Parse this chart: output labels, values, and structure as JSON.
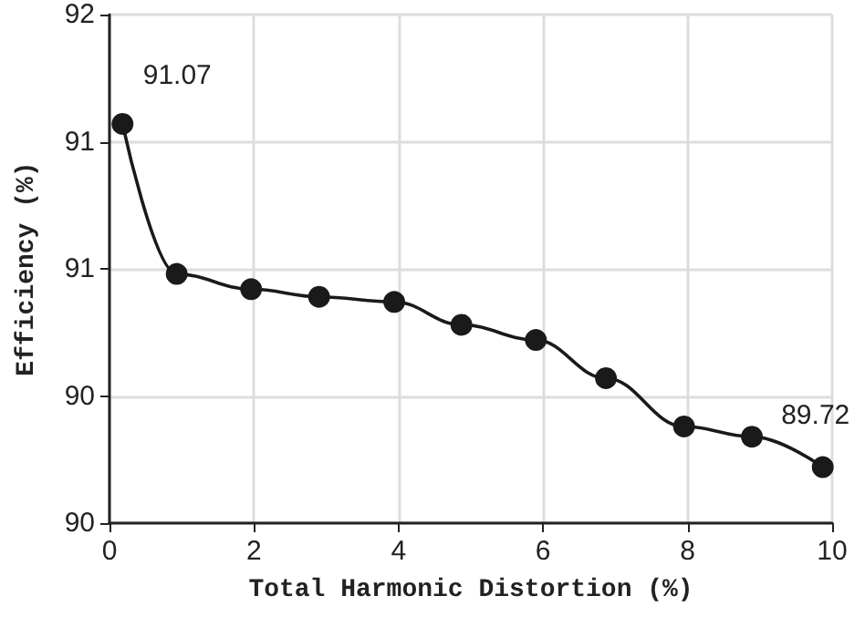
{
  "chart_data": {
    "type": "line",
    "xlabel": "Total Harmonic Distortion (%)",
    "ylabel": "Efficiency (%)",
    "x": [
      0.18,
      0.93,
      1.96,
      2.9,
      3.94,
      4.87,
      5.9,
      6.87,
      7.95,
      8.89,
      9.87
    ],
    "series": [
      {
        "color": "#1a1a1a",
        "values": [
          91.07,
          90.48,
          90.42,
          90.39,
          90.37,
          90.28,
          90.22,
          90.07,
          89.88,
          89.84,
          89.72
        ],
        "value_labels": [
          "91.07",
          null,
          null,
          null,
          null,
          null,
          null,
          null,
          null,
          null,
          "89.72"
        ]
      }
    ],
    "xlim": [
      0,
      10
    ],
    "xticks": [
      0,
      2,
      4,
      6,
      8,
      10
    ],
    "ylim": [
      89.5,
      91.5
    ],
    "yticks": [
      {
        "value": 89.5,
        "label": "90"
      },
      {
        "value": 90,
        "label": "90"
      },
      {
        "value": 90.5,
        "label": "91"
      },
      {
        "value": 91,
        "label": "91"
      },
      {
        "value": 91.5,
        "label": "92"
      }
    ],
    "grid": true,
    "marker": "circle",
    "line_style": "solid"
  }
}
